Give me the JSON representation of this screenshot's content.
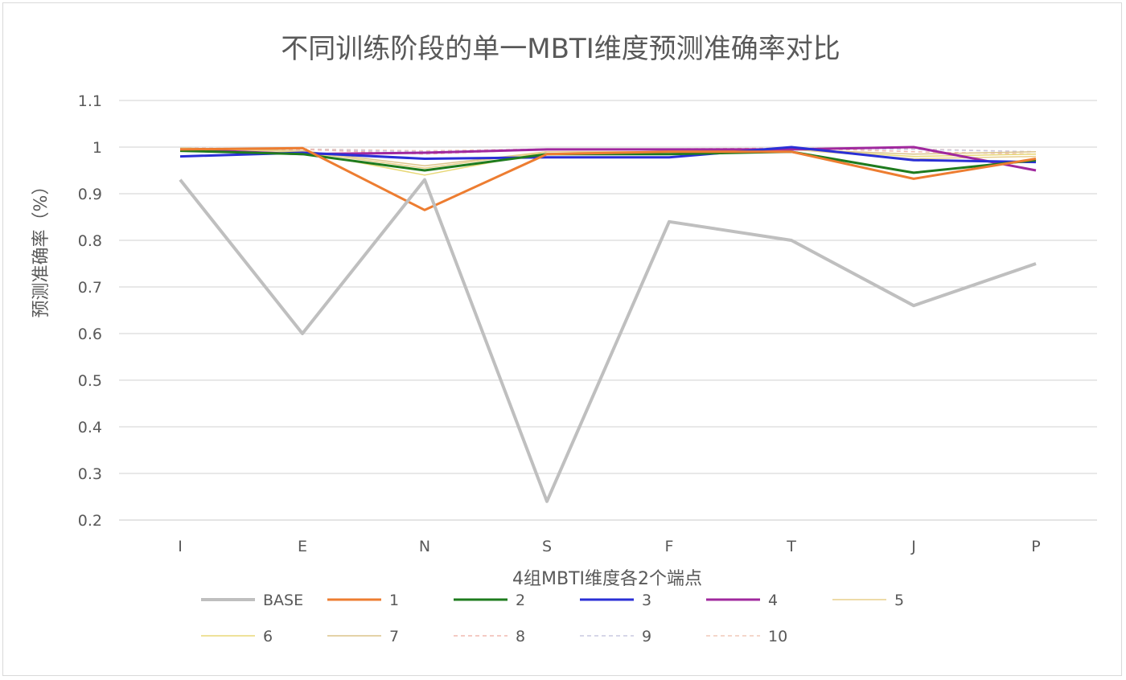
{
  "chart_data": {
    "type": "line",
    "title": "不同训练阶段的单一MBTI维度预测准确率对比",
    "xlabel": "4组MBTI维度各2个端点",
    "ylabel": "预测准确率（%）",
    "categories": [
      "I",
      "E",
      "N",
      "S",
      "F",
      "T",
      "J",
      "P"
    ],
    "ylim": [
      0.2,
      1.1
    ],
    "yticks": [
      "0.2",
      "0.3",
      "0.4",
      "0.5",
      "0.6",
      "0.7",
      "0.8",
      "0.9",
      "1",
      "1.1"
    ],
    "grid": true,
    "legend_position": "bottom",
    "series": [
      {
        "name": "BASE",
        "color": "#bfbfbf",
        "width": 4,
        "dash": "",
        "values": [
          0.93,
          0.6,
          0.93,
          0.24,
          0.84,
          0.8,
          0.66,
          0.75
        ]
      },
      {
        "name": "1",
        "color": "#ed7d31",
        "width": 3,
        "dash": "",
        "values": [
          0.995,
          0.998,
          0.865,
          0.985,
          0.99,
          0.99,
          0.932,
          0.975
        ]
      },
      {
        "name": "2",
        "color": "#1e7b1e",
        "width": 3,
        "dash": "",
        "values": [
          0.992,
          0.985,
          0.95,
          0.985,
          0.985,
          0.99,
          0.945,
          0.972
        ]
      },
      {
        "name": "3",
        "color": "#2a2fd6",
        "width": 3,
        "dash": "",
        "values": [
          0.98,
          0.988,
          0.975,
          0.978,
          0.978,
          1.0,
          0.972,
          0.968
        ]
      },
      {
        "name": "4",
        "color": "#a0289e",
        "width": 3,
        "dash": "",
        "values": [
          0.995,
          0.985,
          0.988,
          0.995,
          0.995,
          0.995,
          1.0,
          0.95
        ]
      },
      {
        "name": "5",
        "color": "#e8cf8c",
        "width": 1.5,
        "dash": "",
        "values": [
          0.998,
          0.99,
          0.955,
          0.99,
          0.99,
          0.995,
          0.975,
          0.98
        ]
      },
      {
        "name": "6",
        "color": "#e8d878",
        "width": 1.5,
        "dash": "",
        "values": [
          0.998,
          0.99,
          0.94,
          0.99,
          0.99,
          0.995,
          0.98,
          0.985
        ]
      },
      {
        "name": "7",
        "color": "#dcc48a",
        "width": 1.5,
        "dash": "",
        "values": [
          0.998,
          0.992,
          0.96,
          0.99,
          0.99,
          0.995,
          0.985,
          0.99
        ]
      },
      {
        "name": "8",
        "color": "#f0b8b0",
        "width": 1.5,
        "dash": "5,4",
        "values": [
          0.998,
          0.995,
          0.985,
          0.995,
          0.995,
          0.998,
          0.99,
          0.985
        ]
      },
      {
        "name": "9",
        "color": "#c8c8e0",
        "width": 1.5,
        "dash": "5,4",
        "values": [
          0.998,
          0.995,
          0.99,
          0.995,
          0.995,
          0.998,
          0.995,
          0.99
        ]
      },
      {
        "name": "10",
        "color": "#f0c8b8",
        "width": 1.5,
        "dash": "5,4",
        "values": [
          0.998,
          0.996,
          0.992,
          0.996,
          0.996,
          0.998,
          0.996,
          0.99
        ]
      }
    ]
  }
}
